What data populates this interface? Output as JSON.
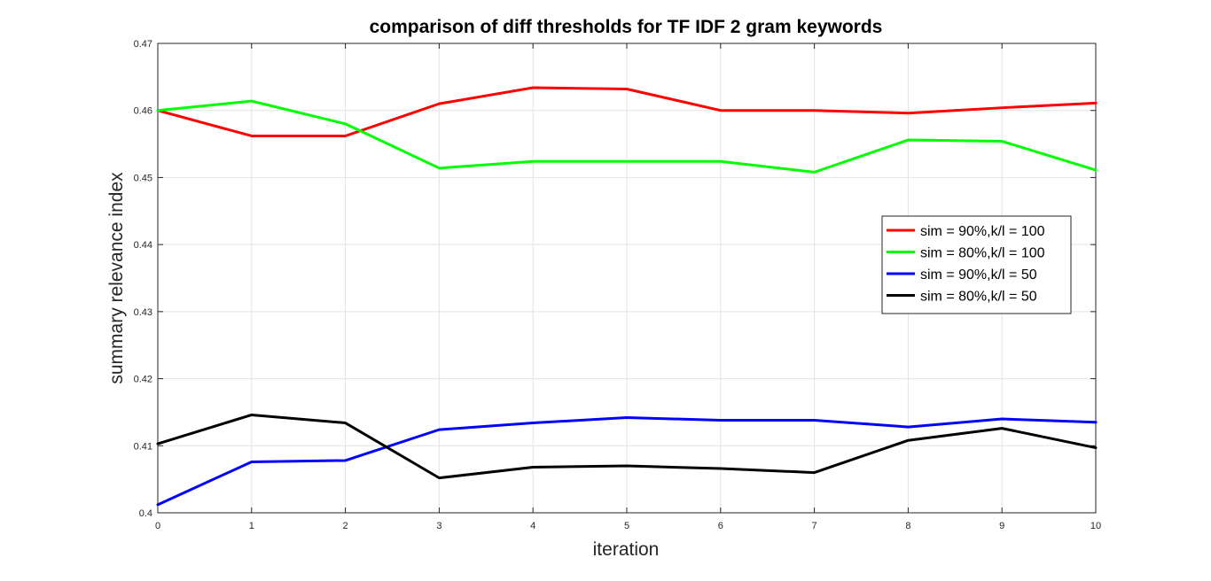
{
  "chart_data": {
    "type": "line",
    "title": "comparison of diff thresholds for TF IDF 2 gram keywords",
    "xlabel": "iteration",
    "ylabel": "summary relevance index",
    "xlim": [
      0,
      10
    ],
    "ylim": [
      0.4,
      0.47
    ],
    "xticks": [
      "0",
      "1",
      "2",
      "3",
      "4",
      "5",
      "6",
      "7",
      "8",
      "9",
      "10"
    ],
    "yticks": [
      "0.4",
      "0.41",
      "0.42",
      "0.43",
      "0.44",
      "0.45",
      "0.46",
      "0.47"
    ],
    "grid": true,
    "legend_position": "right",
    "x": [
      0,
      1,
      2,
      3,
      4,
      5,
      6,
      7,
      8,
      9,
      10
    ],
    "series": [
      {
        "name": "sim = 90%,k/l = 100",
        "color": "#ff0000",
        "values": [
          0.46,
          0.4562,
          0.4562,
          0.461,
          0.4634,
          0.4632,
          0.46,
          0.46,
          0.4596,
          0.4604,
          0.4611
        ]
      },
      {
        "name": "sim = 80%,k/l = 100",
        "color": "#00ff00",
        "values": [
          0.46,
          0.4614,
          0.458,
          0.4514,
          0.4524,
          0.4524,
          0.4524,
          0.4508,
          0.4556,
          0.4554,
          0.4511
        ]
      },
      {
        "name": "sim = 90%,k/l = 50",
        "color": "#0000ff",
        "values": [
          0.4012,
          0.4076,
          0.4078,
          0.4124,
          0.4134,
          0.4142,
          0.4138,
          0.4138,
          0.4128,
          0.414,
          0.4135
        ]
      },
      {
        "name": "sim = 80%,k/l = 50",
        "color": "#000000",
        "values": [
          0.4103,
          0.4146,
          0.4134,
          0.4052,
          0.4068,
          0.407,
          0.4066,
          0.406,
          0.4108,
          0.4126,
          0.4097
        ]
      }
    ]
  }
}
